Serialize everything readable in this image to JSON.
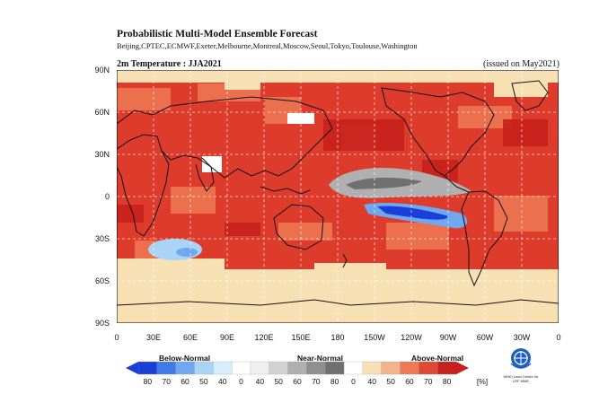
{
  "header": {
    "title": "Probabilistic Multi-Model Ensemble Forecast",
    "subtitle": "Beijing,CPTEC,ECMWF,Exeter,Melbourne,Montreal,Moscow,Seoul,Tokyo,Toulouse,Washington",
    "map_title": "2m Temperature : JJA2021",
    "issued": "(issued on May2021)"
  },
  "axes": {
    "y_labels": [
      "90N",
      "60N",
      "30N",
      "0",
      "30S",
      "60S",
      "90S"
    ],
    "x_labels": [
      "0",
      "30E",
      "60E",
      "90E",
      "120E",
      "150E",
      "180",
      "150W",
      "120W",
      "90W",
      "60W",
      "30W",
      "0"
    ]
  },
  "legend": {
    "below_label": "Below-Normal",
    "near_label": "Near-Normal",
    "above_label": "Above-Normal",
    "unit": "[%]",
    "tick_labels": [
      "80",
      "70",
      "60",
      "50",
      "40",
      "0",
      "40",
      "50",
      "60",
      "70",
      "80",
      "0",
      "40",
      "50",
      "60",
      "70",
      "80"
    ],
    "colors": [
      "#1a3fd8",
      "#3f7ae8",
      "#6fa8f0",
      "#a9d3f7",
      "#d6eefc",
      "#ffffff",
      "#f0f0f0",
      "#d2d2d2",
      "#b0b0b0",
      "#8f8f8f",
      "#707070",
      "#ffffff",
      "#f6e0b4",
      "#f3b48c",
      "#ee7a55",
      "#e04a33",
      "#c8201c"
    ]
  },
  "logo": {
    "icon": "wmo-emblem",
    "text": "WMO Lead Centre for LRF MME"
  },
  "map_colors": {
    "ocean_base": "#dd3b2c",
    "near_neutral": "#f6e0b4",
    "grey": "#8f8f8f",
    "dark_grey": "#6a6a6a",
    "blue": "#2a5fe0",
    "light_blue": "#8fc3f2"
  }
}
